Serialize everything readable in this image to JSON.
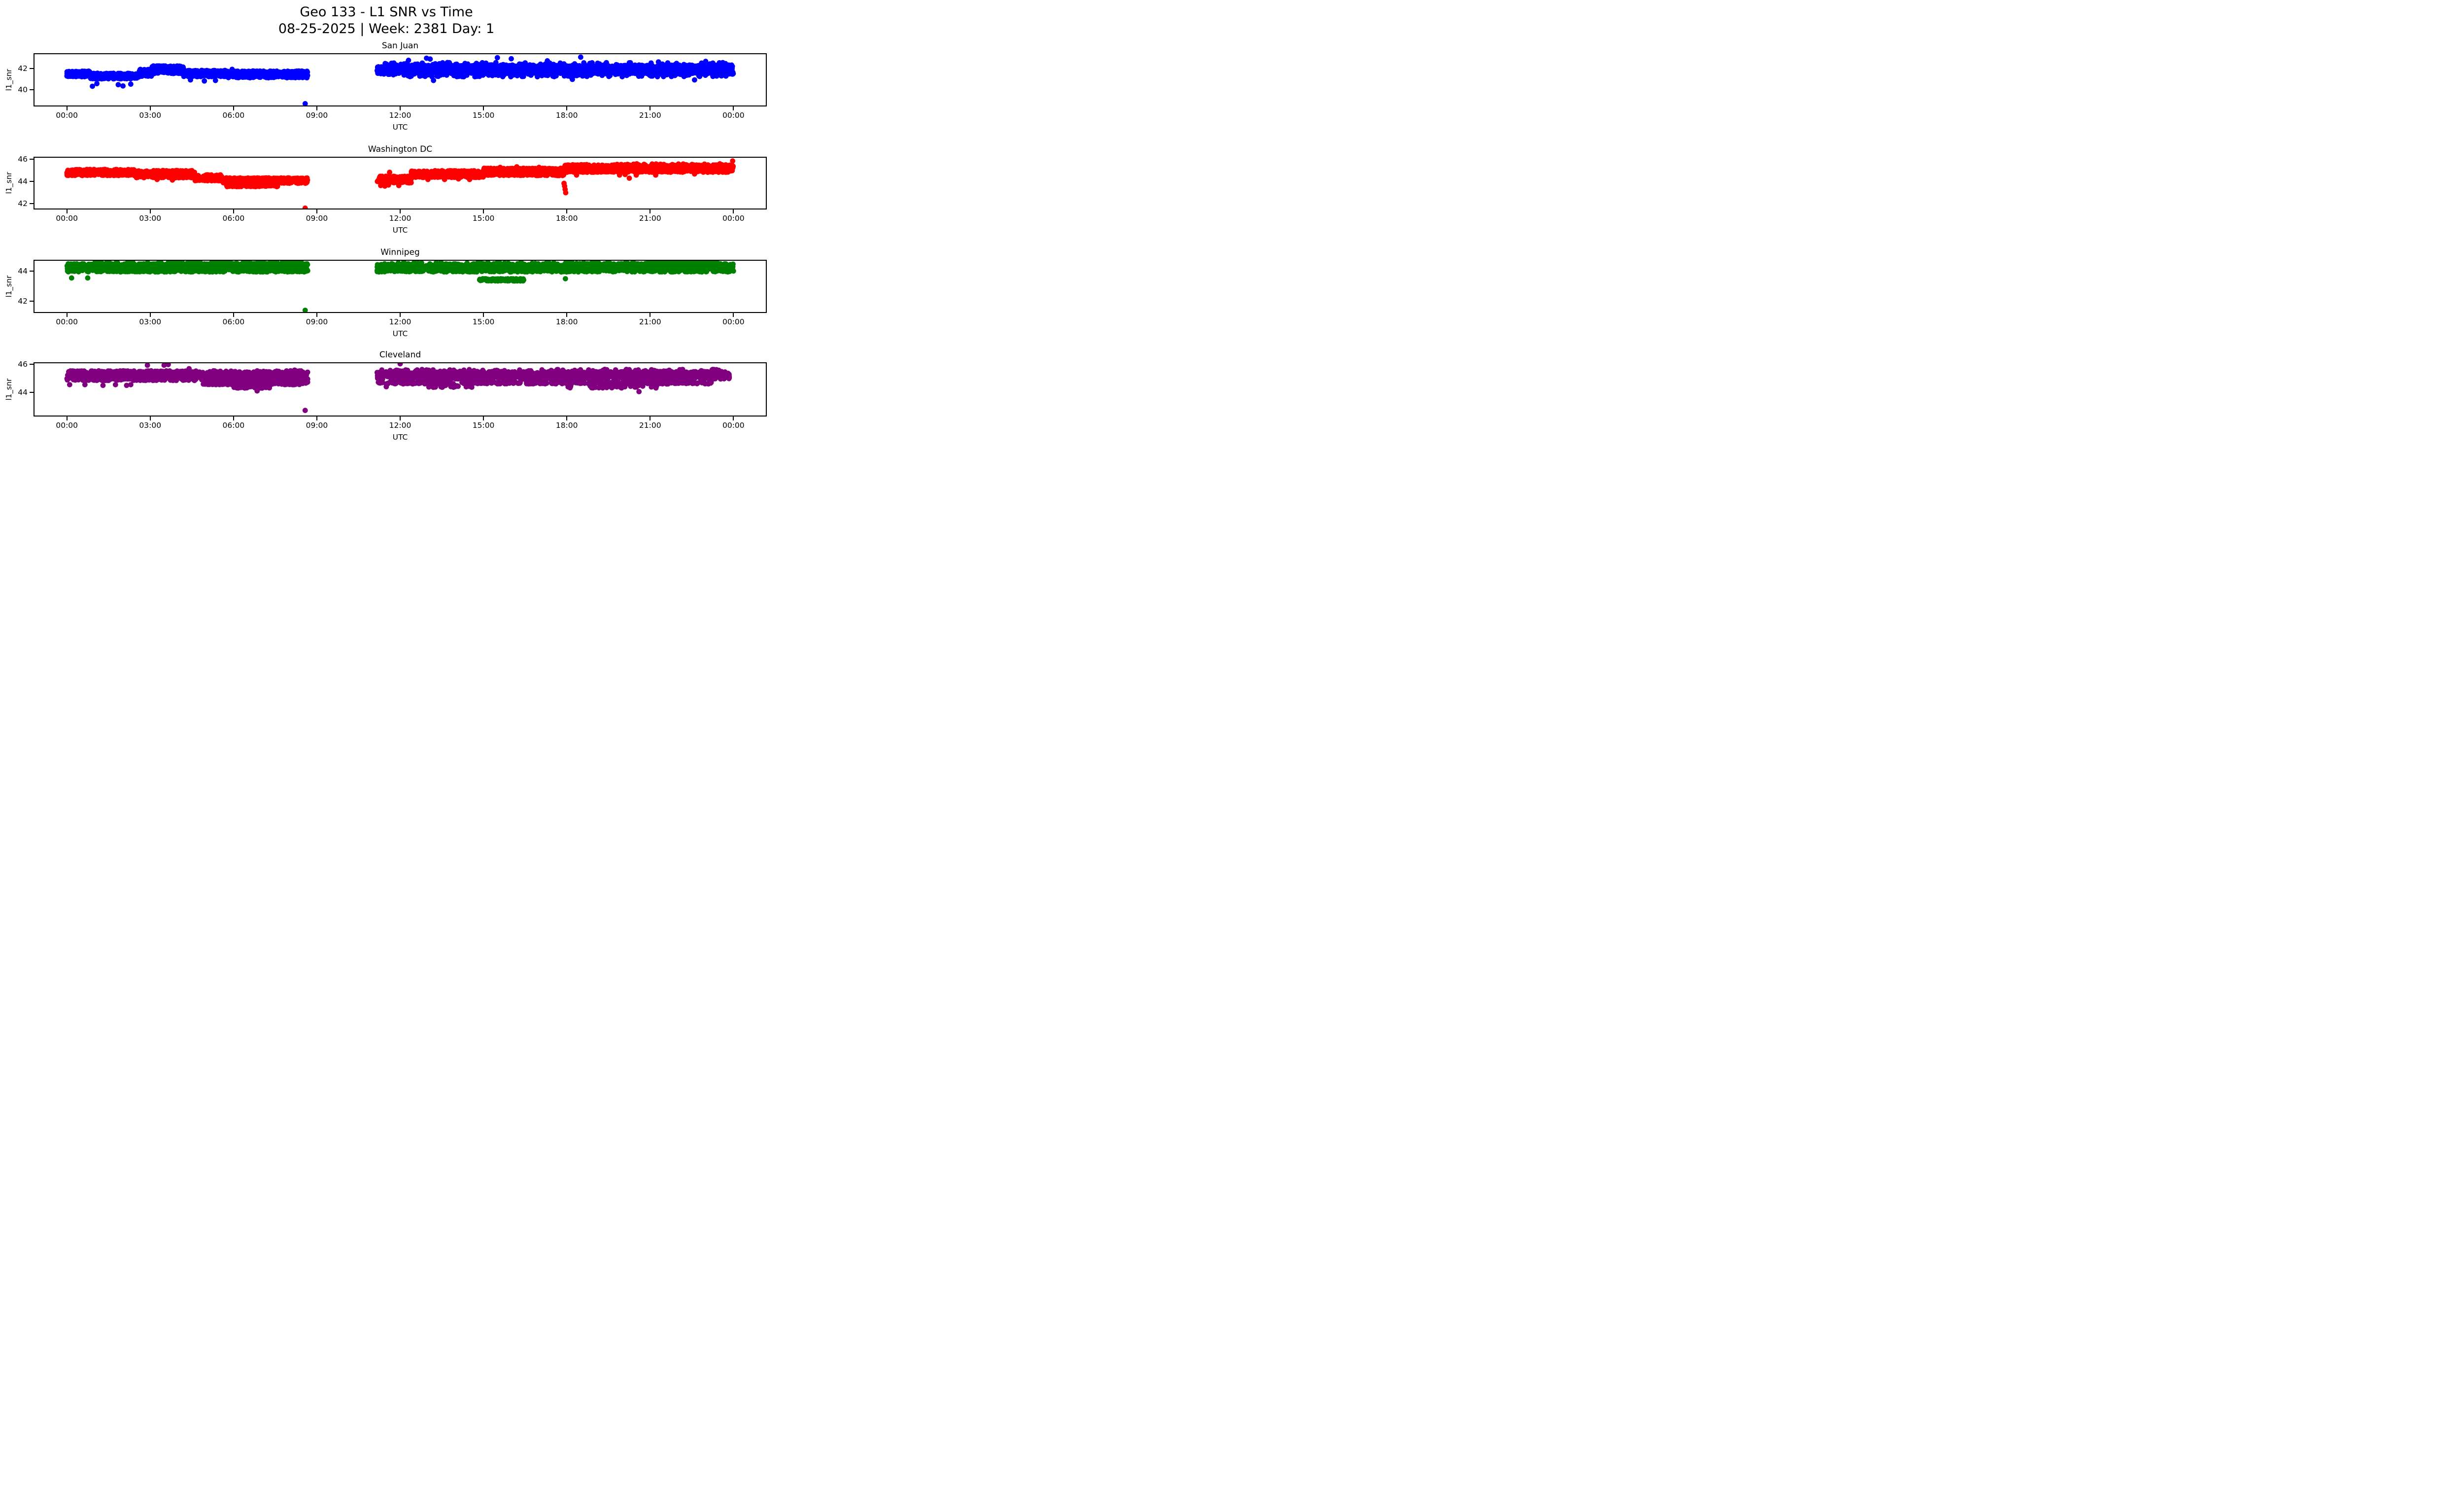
{
  "figure_title": {
    "line1": "Geo 133 - L1 SNR vs Time",
    "line2": "08-25-2025 | Week: 2381 Day: 1"
  },
  "x_axis": {
    "label": "UTC",
    "ticks": [
      {
        "t": 0,
        "label": "00:00"
      },
      {
        "t": 3,
        "label": "03:00"
      },
      {
        "t": 6,
        "label": "06:00"
      },
      {
        "t": 9,
        "label": "09:00"
      },
      {
        "t": 12,
        "label": "12:00"
      },
      {
        "t": 15,
        "label": "15:00"
      },
      {
        "t": 18,
        "label": "18:00"
      },
      {
        "t": 21,
        "label": "21:00"
      },
      {
        "t": 24,
        "label": "00:00"
      }
    ]
  },
  "y_axis_label": "l1_snr",
  "chart_data": [
    {
      "type": "scatter",
      "station": "San Juan",
      "color": "#0000ff",
      "marker": "circle",
      "xlabel": "UTC",
      "ylabel": "l1_snr",
      "x_hours_range": [
        0,
        24
      ],
      "data_gap_hours": [
        8.67,
        11.17
      ],
      "ylim": [
        38.44,
        43.47
      ],
      "yticks": [
        40,
        42
      ],
      "band_segments": [
        {
          "t0": 0.0,
          "t1": 0.85,
          "y0": 41.25,
          "y1": 41.78,
          "n": 120
        },
        {
          "t0": 0.85,
          "t1": 2.6,
          "y0": 41.05,
          "y1": 41.58,
          "n": 240
        },
        {
          "t0": 2.6,
          "t1": 3.05,
          "y0": 41.3,
          "y1": 41.95,
          "n": 65
        },
        {
          "t0": 3.05,
          "t1": 4.2,
          "y0": 41.55,
          "y1": 42.28,
          "n": 170
        },
        {
          "t0": 4.2,
          "t1": 5.8,
          "y0": 41.25,
          "y1": 41.85,
          "n": 220
        },
        {
          "t0": 5.8,
          "t1": 8.67,
          "y0": 41.15,
          "y1": 41.8,
          "n": 400
        },
        {
          "t0": 11.17,
          "t1": 24.0,
          "y0": 41.5,
          "y1": 42.35,
          "n": 1600
        },
        {
          "t0": 11.25,
          "t1": 23.95,
          "y0": 42.35,
          "y1": 42.6,
          "n": 70
        },
        {
          "t0": 11.2,
          "t1": 24.0,
          "y0": 41.25,
          "y1": 41.5,
          "n": 120
        }
      ],
      "points": [
        [
          0.92,
          40.35
        ],
        [
          1.08,
          40.6
        ],
        [
          1.85,
          40.5
        ],
        [
          2.02,
          40.38
        ],
        [
          2.3,
          40.55
        ],
        [
          4.45,
          40.95
        ],
        [
          4.95,
          40.85
        ],
        [
          5.35,
          40.9
        ],
        [
          5.95,
          41.95
        ],
        [
          12.3,
          42.8
        ],
        [
          12.95,
          43.0
        ],
        [
          13.08,
          42.92
        ],
        [
          13.2,
          40.9
        ],
        [
          15.5,
          43.05
        ],
        [
          16.0,
          42.95
        ],
        [
          17.3,
          42.75
        ],
        [
          18.5,
          43.1
        ],
        [
          18.2,
          41.0
        ],
        [
          21.3,
          42.65
        ],
        [
          22.6,
          40.95
        ],
        [
          23.0,
          42.7
        ],
        [
          8.58,
          38.7
        ]
      ]
    },
    {
      "type": "scatter",
      "station": "Washington DC",
      "color": "#ff0000",
      "marker": "circle",
      "xlabel": "UTC",
      "ylabel": "l1_snr",
      "x_hours_range": [
        0,
        24
      ],
      "data_gap_hours": [
        8.67,
        11.17
      ],
      "ylim": [
        41.48,
        46.26
      ],
      "yticks": [
        42,
        44,
        46
      ],
      "band_segments": [
        {
          "t0": 0.0,
          "t1": 2.5,
          "y0": 44.55,
          "y1": 45.12,
          "n": 320
        },
        {
          "t0": 2.5,
          "t1": 4.6,
          "y0": 44.35,
          "y1": 45.02,
          "n": 280
        },
        {
          "t0": 4.6,
          "t1": 5.6,
          "y0": 44.08,
          "y1": 44.62,
          "n": 130
        },
        {
          "t0": 5.6,
          "t1": 8.67,
          "y0": 43.85,
          "y1": 44.35,
          "n": 400
        },
        {
          "t0": 5.75,
          "t1": 7.6,
          "y0": 43.55,
          "y1": 43.75,
          "n": 100
        },
        {
          "t0": 11.17,
          "t1": 12.4,
          "y0": 43.88,
          "y1": 44.5,
          "n": 160
        },
        {
          "t0": 12.4,
          "t1": 15.0,
          "y0": 44.38,
          "y1": 45.0,
          "n": 340
        },
        {
          "t0": 15.0,
          "t1": 17.9,
          "y0": 44.55,
          "y1": 45.22,
          "n": 380
        },
        {
          "t0": 17.9,
          "t1": 24.0,
          "y0": 44.85,
          "y1": 45.52,
          "n": 820
        },
        {
          "t0": 18.1,
          "t1": 23.9,
          "y0": 45.5,
          "y1": 45.62,
          "n": 40
        }
      ],
      "points": [
        [
          3.25,
          44.2
        ],
        [
          3.8,
          44.15
        ],
        [
          11.3,
          43.65
        ],
        [
          11.45,
          43.6
        ],
        [
          11.58,
          43.7
        ],
        [
          11.95,
          43.65
        ],
        [
          11.62,
          44.85
        ],
        [
          13.0,
          44.2
        ],
        [
          13.6,
          44.2
        ],
        [
          14.1,
          44.25
        ],
        [
          14.5,
          44.2
        ],
        [
          15.6,
          45.3
        ],
        [
          16.2,
          45.35
        ],
        [
          17.0,
          45.3
        ],
        [
          17.9,
          43.85
        ],
        [
          17.92,
          43.6
        ],
        [
          17.94,
          43.3
        ],
        [
          17.96,
          43.0
        ],
        [
          18.35,
          44.6
        ],
        [
          19.9,
          44.6
        ],
        [
          20.1,
          44.65
        ],
        [
          20.25,
          44.32
        ],
        [
          20.5,
          44.6
        ],
        [
          21.2,
          44.6
        ],
        [
          22.6,
          44.7
        ],
        [
          23.97,
          45.88
        ],
        [
          8.58,
          41.6
        ]
      ]
    },
    {
      "type": "scatter",
      "station": "Winnipeg",
      "color": "#008000",
      "marker": "circle",
      "xlabel": "UTC",
      "ylabel": "l1_snr",
      "x_hours_range": [
        0,
        24
      ],
      "data_gap_hours": [
        8.67,
        11.17
      ],
      "ylim": [
        41.22,
        44.76
      ],
      "yticks": [
        42,
        44
      ],
      "band_segments": [
        {
          "t0": 0.0,
          "t1": 8.67,
          "y0": 43.95,
          "y1": 44.5,
          "n": 1050
        },
        {
          "t0": 0.9,
          "t1": 8.6,
          "y0": 44.5,
          "y1": 44.65,
          "n": 80
        },
        {
          "t0": 11.17,
          "t1": 24.0,
          "y0": 43.95,
          "y1": 44.5,
          "n": 1500
        },
        {
          "t0": 11.3,
          "t1": 20.9,
          "y0": 44.5,
          "y1": 44.62,
          "n": 45
        },
        {
          "t0": 20.9,
          "t1": 23.4,
          "y0": 44.5,
          "y1": 44.65,
          "n": 140
        },
        {
          "t0": 14.85,
          "t1": 16.45,
          "y0": 43.35,
          "y1": 43.5,
          "n": 120
        }
      ],
      "points": [
        [
          0.17,
          43.55
        ],
        [
          0.75,
          43.55
        ],
        [
          17.95,
          43.5
        ],
        [
          8.58,
          41.4
        ]
      ]
    },
    {
      "type": "scatter",
      "station": "Cleveland",
      "color": "#800080",
      "marker": "circle",
      "xlabel": "UTC",
      "ylabel": "l1_snr",
      "x_hours_range": [
        0,
        24
      ],
      "data_gap_hours": [
        8.67,
        11.17
      ],
      "ylim": [
        42.26,
        46.16
      ],
      "yticks": [
        44,
        46
      ],
      "band_segments": [
        {
          "t0": 0.0,
          "t1": 8.67,
          "y0": 44.85,
          "y1": 45.55,
          "n": 950
        },
        {
          "t0": 4.9,
          "t1": 8.67,
          "y0": 44.55,
          "y1": 44.75,
          "n": 280
        },
        {
          "t0": 6.0,
          "t1": 7.3,
          "y0": 44.3,
          "y1": 44.45,
          "n": 45
        },
        {
          "t0": 11.17,
          "t1": 23.85,
          "y0": 44.95,
          "y1": 45.5,
          "n": 1300
        },
        {
          "t0": 11.2,
          "t1": 23.8,
          "y0": 45.5,
          "y1": 45.65,
          "n": 90
        },
        {
          "t0": 11.2,
          "t1": 23.2,
          "y0": 44.6,
          "y1": 44.75,
          "n": 320
        },
        {
          "t0": 13.0,
          "t1": 14.6,
          "y0": 44.35,
          "y1": 44.5,
          "n": 30
        },
        {
          "t0": 18.0,
          "t1": 21.3,
          "y0": 44.3,
          "y1": 44.5,
          "n": 40
        }
      ],
      "points": [
        [
          0.1,
          44.55
        ],
        [
          0.65,
          44.55
        ],
        [
          1.3,
          44.5
        ],
        [
          1.75,
          44.55
        ],
        [
          2.15,
          44.5
        ],
        [
          2.3,
          44.55
        ],
        [
          2.9,
          45.95
        ],
        [
          3.5,
          45.95
        ],
        [
          3.65,
          46.0
        ],
        [
          4.4,
          45.7
        ],
        [
          8.2,
          45.6
        ],
        [
          6.85,
          44.1
        ],
        [
          11.5,
          44.4
        ],
        [
          12.0,
          46.05
        ],
        [
          20.6,
          44.05
        ],
        [
          8.58,
          42.7
        ]
      ]
    }
  ]
}
